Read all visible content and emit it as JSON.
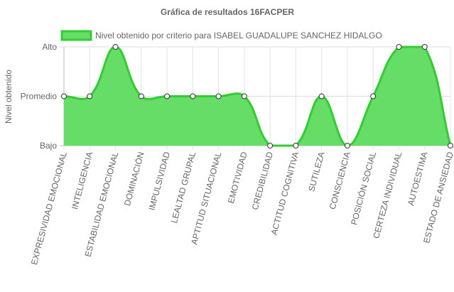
{
  "chart_data": {
    "type": "line",
    "title": "Gráfica de resultados 16FACPER",
    "y_label": "Nivel obtenido",
    "categories": [
      "EXPRESIVIDAD EMOCIONAL",
      "INTELIGENCIA",
      "ESTABILIDAD EMOCIONAL",
      "DOMINACIÓN",
      "IMPULSIVIDAD",
      "LEALTAD GRUPAL",
      "APTITUD SITUACIONAL",
      "EMOTIVIDAD",
      "CREDIBILIDAD",
      "ACTITUD COGNITIVA",
      "SUTILEZA",
      "CONSCIENCIA",
      "POSICIÓN SOCIAL",
      "CERTEZA INDIVIDUAL",
      "AUTOESTIMA",
      "ESTADO DE ANSIEDAD"
    ],
    "series": [
      {
        "name": "Nivel obtenido por criterio para ISABEL GUADALUPE SANCHEZ HIDALGO",
        "color": "#33cc33",
        "fill": "#66dd66",
        "values": [
          1,
          1,
          2,
          1,
          1,
          1,
          1,
          1,
          0,
          0,
          1,
          0,
          1,
          2,
          2,
          0
        ]
      }
    ],
    "ylim": [
      0,
      2
    ],
    "yticks": [
      {
        "value": 0,
        "label": "Bajo"
      },
      {
        "value": 1,
        "label": "Promedio"
      },
      {
        "value": 2,
        "label": "Alto"
      }
    ],
    "grid": true,
    "legend": "top"
  }
}
